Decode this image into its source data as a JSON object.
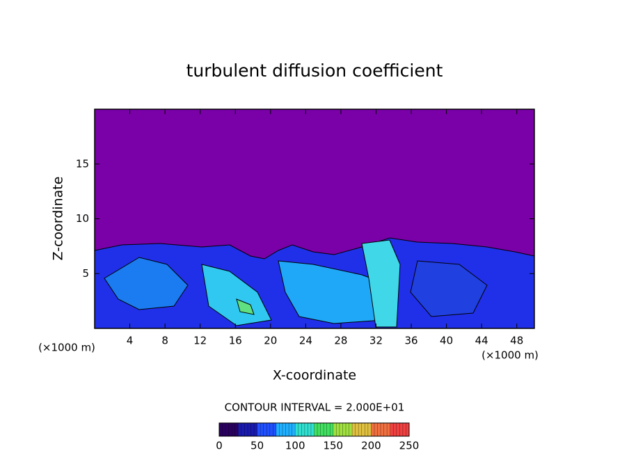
{
  "chart_data": {
    "type": "contour",
    "title": "turbulent diffusion coefficient",
    "x_label": "X-coordinate",
    "y_label": "Z-coordinate",
    "x_unit": "(×1000 m)",
    "xlim": [
      0,
      50
    ],
    "xticks": [
      4,
      8,
      12,
      16,
      20,
      24,
      28,
      32,
      36,
      40,
      44,
      48
    ],
    "ylim": [
      0,
      20
    ],
    "yticks": [
      5,
      10,
      15
    ],
    "contour_interval": "CONTOUR INTERVAL = 2.000E+01",
    "colorbar": {
      "lim": [
        0,
        250
      ],
      "ticks": [
        0,
        50,
        100,
        150,
        200,
        250
      ],
      "colors": [
        "#2a0060",
        "#1a1ab0",
        "#2050ff",
        "#20b0ff",
        "#30e0d0",
        "#40e060",
        "#a0e040",
        "#e0c040",
        "#f07040",
        "#f04040"
      ]
    }
  }
}
